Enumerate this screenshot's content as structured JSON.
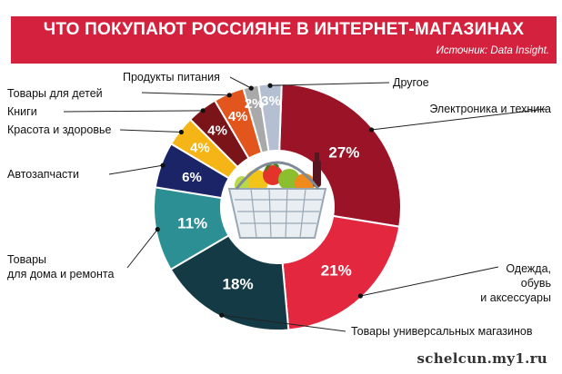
{
  "header": {
    "title": "ЧТО ПОКУПАЮТ РОССИЯНЕ В ИНТЕРНЕТ-МАГАЗИНАХ",
    "source": "Источник: Data Insight."
  },
  "watermark": "schelcun.my1.ru",
  "chart_data": {
    "type": "pie",
    "title": "ЧТО ПОКУПАЮТ РОССИЯНЕ В ИНТЕРНЕТ-МАГАЗИНАХ",
    "unit": "%",
    "slices": [
      {
        "label": "Электроника и техника",
        "value": 27,
        "display": "27%",
        "color": "#9b1326"
      },
      {
        "label": "Одежда, обувь и аксессуары",
        "value": 21,
        "display": "21%",
        "color": "#e2273f"
      },
      {
        "label": "Товары универсальных магазинов",
        "value": 18,
        "display": "18%",
        "color": "#143a45"
      },
      {
        "label": "Товары для дома и ремонта",
        "value": 11,
        "display": "11%",
        "color": "#2b8f94"
      },
      {
        "label": "Автозапчасти",
        "value": 6,
        "display": "6%",
        "color": "#1c2468"
      },
      {
        "label": "Красота и здоровье",
        "value": 4,
        "display": "4%",
        "color": "#f5b516"
      },
      {
        "label": "Книги",
        "value": 4,
        "display": "4%",
        "color": "#7a1418"
      },
      {
        "label": "Товары для детей",
        "value": 4,
        "display": "4%",
        "color": "#e2561e"
      },
      {
        "label": "Продукты питания",
        "value": 2,
        "display": "2%",
        "color": "#a9a9a9"
      },
      {
        "label": "Другое",
        "value": 3,
        "display": "3%",
        "color": "#b4bfd2"
      }
    ]
  }
}
